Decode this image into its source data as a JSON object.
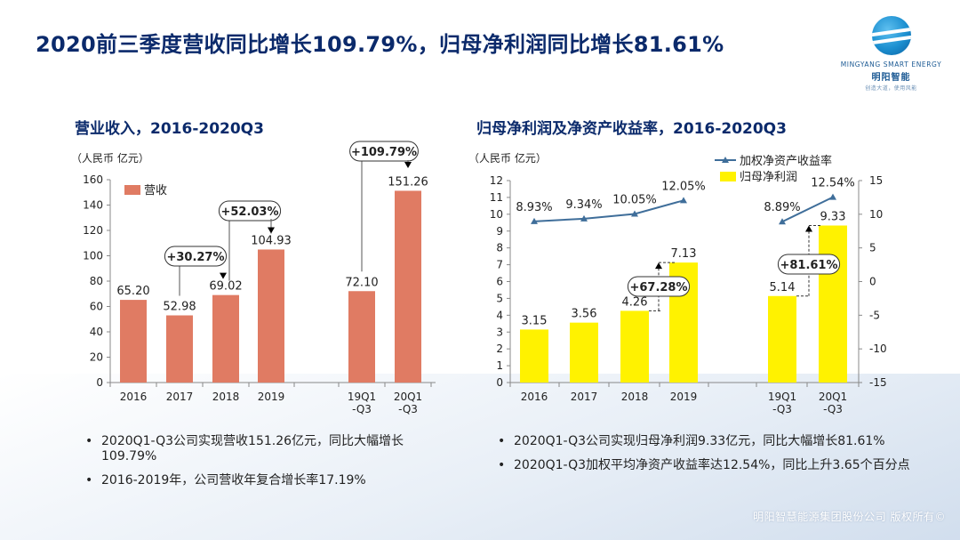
{
  "title": "2020前三季度营收同比增长109.79%，归母净利润同比增长81.61%",
  "logo": {
    "en": "MINGYANG SMART ENERGY",
    "cn": "明阳智能",
    "sub": "创造大道，使用风能"
  },
  "footer": "明阳智慧能源集团股份公司  版权所有©",
  "left_chart_title": "营业收入，2016-2020Q3",
  "right_chart_title": "归母净利润及净资产收益率，2016-2020Q3",
  "left_bullets": [
    "2020Q1-Q3公司实现营收151.26亿元，同比大幅增长109.79%",
    "2016-2019年，公司营收年复合增长率17.19%"
  ],
  "right_bullets": [
    "2020Q1-Q3公司实现归母净利润9.33亿元，同比大幅增长81.61%",
    "2020Q1-Q3加权平均净资产收益率达12.54%，同比上升3.65个百分点"
  ],
  "colors": {
    "title": "#0b2a6b",
    "revenue_bar": "#e07b63",
    "profit_bar": "#fff200",
    "roe_line": "#3f6e9a",
    "arrow": "#000000"
  },
  "chart_data": [
    {
      "type": "bar",
      "unit": "（人民币 亿元）",
      "categories": [
        "2016",
        "2017",
        "2018",
        "2019",
        "19Q1\n-Q3",
        "20Q1\n-Q3"
      ],
      "series": [
        {
          "name": "营收",
          "values": [
            65.2,
            52.98,
            69.02,
            104.93,
            72.1,
            151.26
          ]
        }
      ],
      "value_labels": [
        "65.20",
        "52.98",
        "69.02",
        "104.93",
        "72.10",
        "151.26"
      ],
      "ylim": [
        0,
        160
      ],
      "yticks": [
        "0",
        "20",
        "40",
        "60",
        "80",
        "100",
        "120",
        "140",
        "160"
      ],
      "legend": "top-left",
      "annotations": [
        {
          "text": "+30.27%",
          "from": "2017",
          "to": "2018"
        },
        {
          "text": "+52.03%",
          "from": "2018",
          "to": "2019"
        },
        {
          "text": "+109.79%",
          "from": "19Q1\n-Q3",
          "to": "20Q1\n-Q3"
        }
      ]
    },
    {
      "type": "bar",
      "unit": "（人民币 亿元）",
      "categories": [
        "2016",
        "2017",
        "2018",
        "2019",
        "19Q1\n-Q3",
        "20Q1\n-Q3"
      ],
      "series": [
        {
          "name": "归母净利润",
          "type": "bar",
          "axis": "left",
          "values": [
            3.15,
            3.56,
            4.26,
            7.13,
            5.14,
            9.33
          ],
          "labels": [
            "3.15",
            "3.56",
            "4.26",
            "7.13",
            "5.14",
            "9.33"
          ]
        },
        {
          "name": "加权净资产收益率",
          "type": "line",
          "axis": "right",
          "values": [
            8.93,
            9.34,
            10.05,
            12.05,
            8.89,
            12.54
          ],
          "labels": [
            "8.93%",
            "9.34%",
            "10.05%",
            "12.05%",
            "8.89%",
            "12.54%"
          ]
        }
      ],
      "ylim": [
        0,
        12
      ],
      "yticks": [
        "0",
        "1",
        "2",
        "3",
        "4",
        "5",
        "6",
        "7",
        "8",
        "9",
        "10",
        "11",
        "12"
      ],
      "y2lim": [
        -15,
        15
      ],
      "y2ticks": [
        "-15",
        "-10",
        "-5",
        "0",
        "5",
        "10",
        "15"
      ],
      "legend": "top-right",
      "annotations": [
        {
          "text": "+67.28%",
          "from": "2018",
          "to": "2019"
        },
        {
          "text": "+81.61%",
          "from": "19Q1\n-Q3",
          "to": "20Q1\n-Q3"
        }
      ]
    }
  ]
}
